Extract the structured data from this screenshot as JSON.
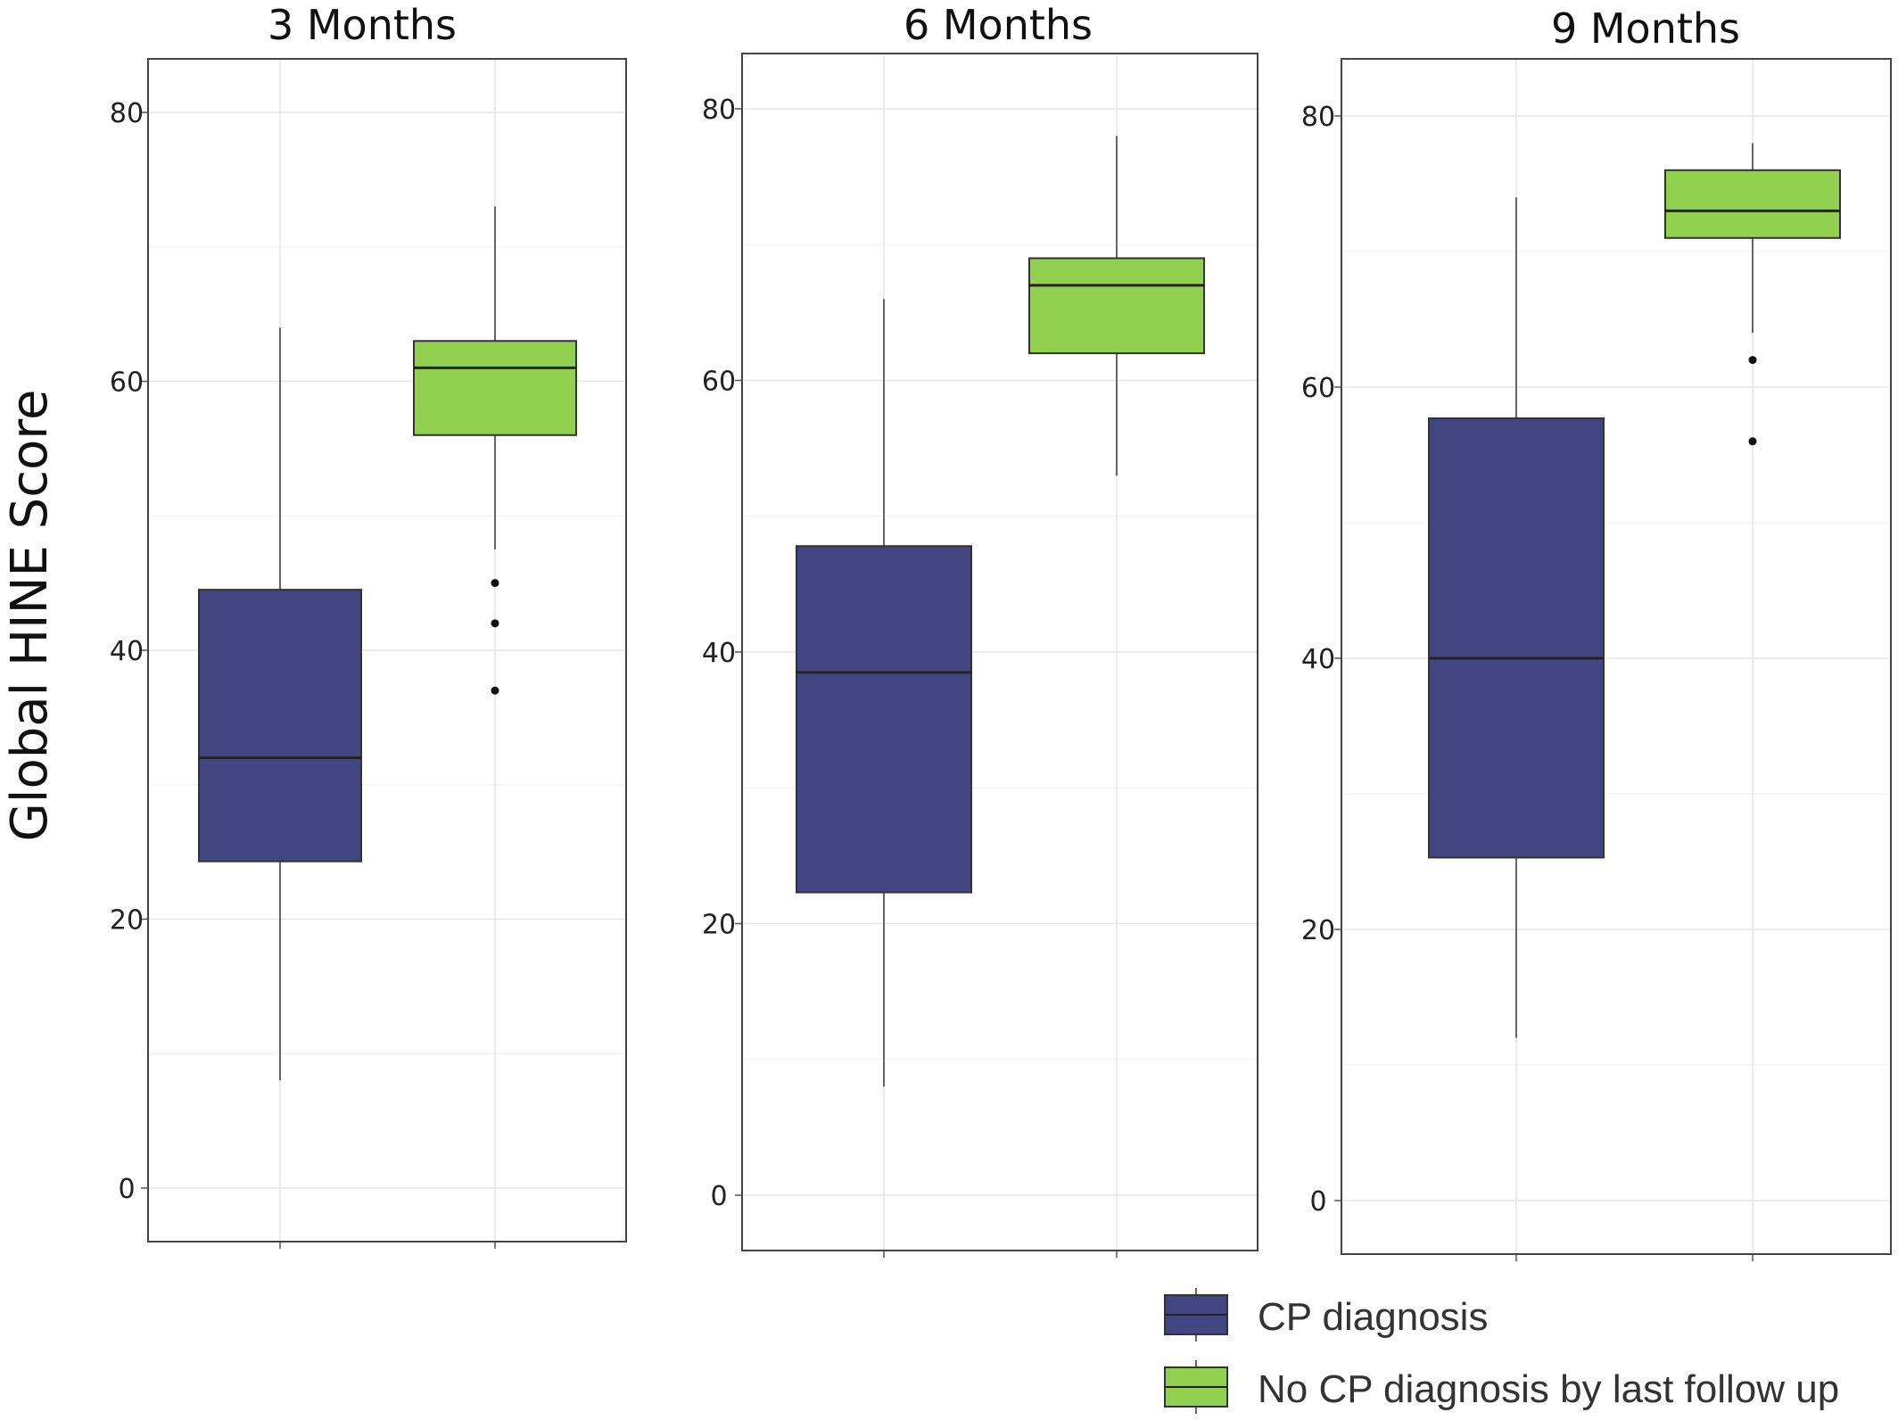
{
  "chart_data": {
    "type": "box",
    "ylabel": "Global HINE Score",
    "ylim": [
      0,
      80
    ],
    "yticks": [
      "0",
      "20",
      "40",
      "60",
      "80"
    ],
    "grid": true,
    "legend": {
      "position": "bottom-right",
      "entries": [
        {
          "name": "CP diagnosis",
          "color": "#414582"
        },
        {
          "name": "No CP diagnosis by last follow up",
          "color": "#92d050"
        }
      ]
    },
    "panels": [
      {
        "title": "3 Months",
        "boxes": [
          {
            "group": "CP diagnosis",
            "min": 8,
            "q1": 24.3,
            "median": 32,
            "q3": 44.5,
            "max": 64,
            "outliers": []
          },
          {
            "group": "No CP diagnosis by last follow up",
            "min": 47.5,
            "q1": 56,
            "median": 61,
            "q3": 63,
            "max": 73,
            "outliers": [
              45,
              42,
              37
            ]
          }
        ]
      },
      {
        "title": "6 Months",
        "boxes": [
          {
            "group": "CP diagnosis",
            "min": 8,
            "q1": 22.3,
            "median": 38.5,
            "q3": 47.8,
            "max": 66,
            "outliers": []
          },
          {
            "group": "No CP diagnosis by last follow up",
            "min": 53,
            "q1": 62,
            "median": 67,
            "q3": 69,
            "max": 78,
            "outliers": []
          }
        ]
      },
      {
        "title": "9 Months",
        "boxes": [
          {
            "group": "CP diagnosis",
            "min": 12,
            "q1": 25.3,
            "median": 40,
            "q3": 57.7,
            "max": 74,
            "outliers": []
          },
          {
            "group": "No CP diagnosis by last follow up",
            "min": 64,
            "q1": 71,
            "median": 73,
            "q3": 76,
            "max": 78,
            "outliers": [
              62,
              56
            ]
          }
        ]
      }
    ]
  }
}
